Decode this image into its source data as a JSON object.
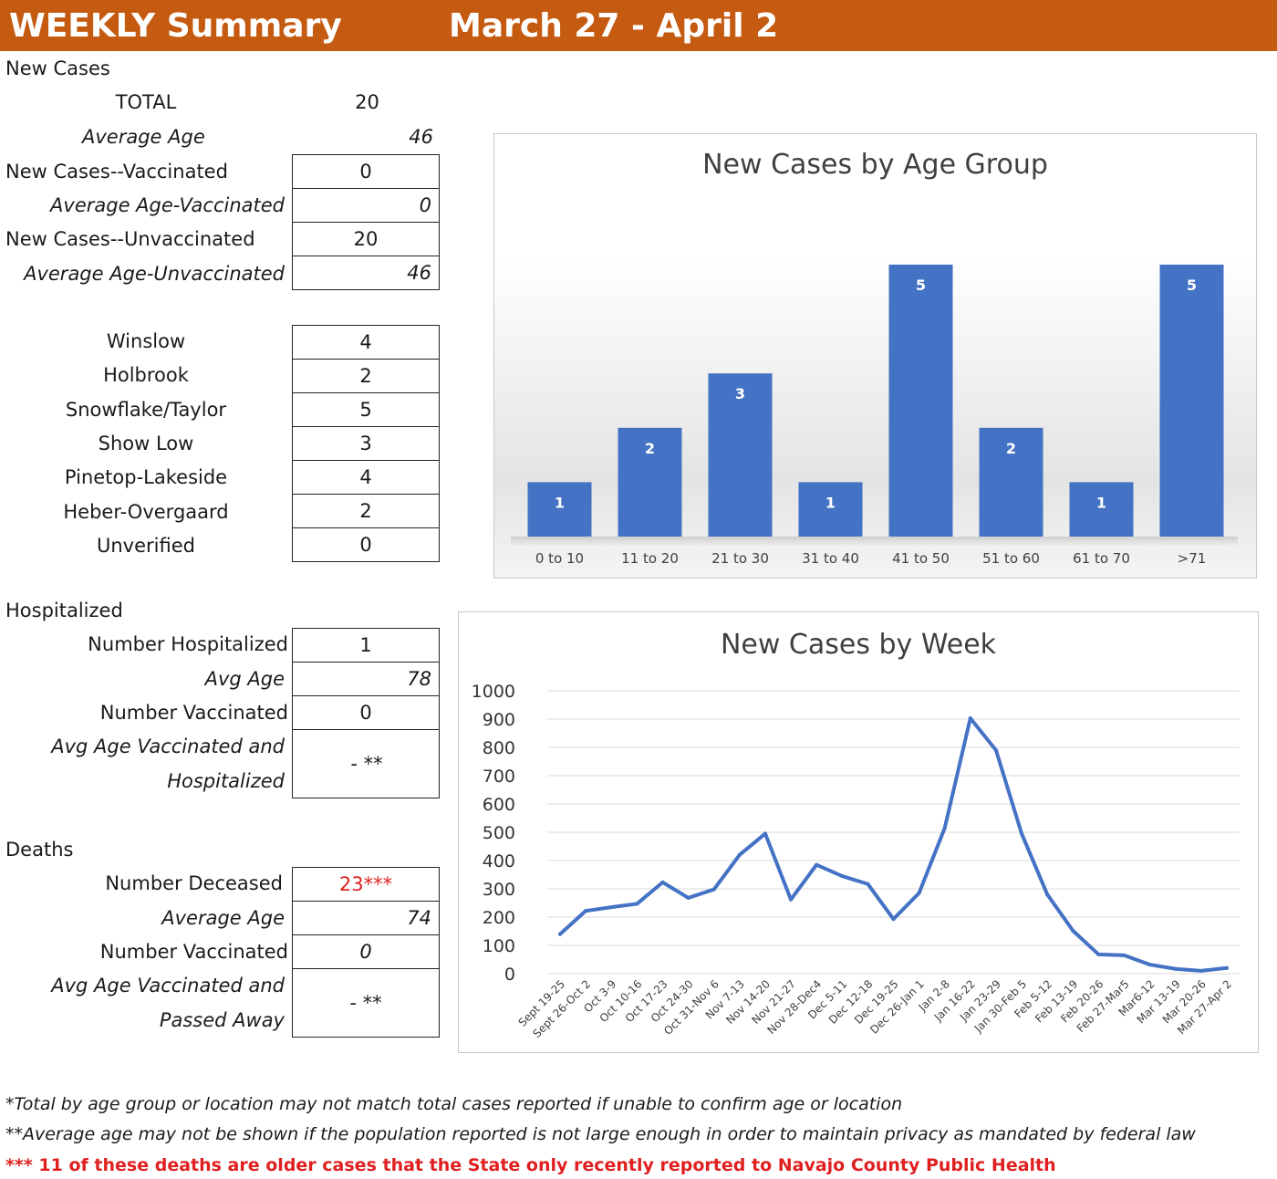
{
  "header": {
    "left": "WEEKLY Summary",
    "right": "March 27 - April 2"
  },
  "new_cases": {
    "section_title": "New Cases",
    "total_label": "TOTAL",
    "total_value": "20",
    "avg_age_label": "Average Age",
    "avg_age_value": "46",
    "rows": [
      {
        "label": "New Cases--Vaccinated",
        "value": "0"
      },
      {
        "label": "Average Age-Vaccinated",
        "value": "0"
      },
      {
        "label": "New Cases--Unvaccinated",
        "value": "20"
      },
      {
        "label": "Average Age-Unvaccinated",
        "value": "46"
      }
    ]
  },
  "locations": [
    {
      "label": "Winslow",
      "value": "4"
    },
    {
      "label": "Holbrook",
      "value": "2"
    },
    {
      "label": "Snowflake/Taylor",
      "value": "5"
    },
    {
      "label": "Show Low",
      "value": "3"
    },
    {
      "label": "Pinetop-Lakeside",
      "value": "4"
    },
    {
      "label": "Heber-Overgaard",
      "value": "2"
    },
    {
      "label": "Unverified",
      "value": "0"
    }
  ],
  "hospitalized": {
    "section_title": "Hospitalized",
    "rows": [
      {
        "label": "Number Hospitalized",
        "value": "1"
      },
      {
        "label": "Avg Age",
        "value": "78"
      },
      {
        "label": "Number Vaccinated",
        "value": "0"
      },
      {
        "label": "Avg Age Vaccinated and",
        "label2": "Hospitalized",
        "value": "- **"
      }
    ]
  },
  "deaths": {
    "section_title": "Deaths",
    "rows": [
      {
        "label": "Number Deceased",
        "value": "23***"
      },
      {
        "label": "Average Age",
        "value": "74"
      },
      {
        "label": "Number Vaccinated",
        "value": "0"
      },
      {
        "label": "Avg Age Vaccinated and",
        "label2": "Passed Away",
        "value": "- **"
      }
    ]
  },
  "footnotes": [
    "*Total by age group or location may not match total cases reported if unable to confirm age or location",
    "**Average age may not be shown if the population reported is not large enough in order to maintain privacy as mandated by federal law",
    "*** 11 of these deaths are older cases that the State only recently reported to Navajo County Public Health"
  ],
  "colors": {
    "header": "#c55a11",
    "bar": "#4472c4",
    "line": "#4472c4",
    "alert": "#e02020"
  },
  "chart_data": [
    {
      "type": "bar",
      "title": "New Cases by Age Group",
      "categories": [
        "0 to 10",
        "11 to 20",
        "21 to 30",
        "31 to 40",
        "41 to 50",
        "51 to 60",
        "61 to 70",
        ">71"
      ],
      "values": [
        1,
        2,
        3,
        1,
        5,
        2,
        1,
        5
      ],
      "ylim": [
        0,
        5
      ],
      "grid": false,
      "legend": "none"
    },
    {
      "type": "line",
      "title": "New Cases by Week",
      "x": [
        "Sept 19-25",
        "Sept 26-Oct 2",
        "Oct 3-9",
        "Oct 10-16",
        "Oct 17-23",
        "Oct 24-30",
        "Oct 31-Nov 6",
        "Nov 7-13",
        "Nov 14-20",
        "Nov 21-27",
        "Nov 28-Dec4",
        "Dec 5-11",
        "Dec 12-18",
        "Dec 19-25",
        "Dec 26-Jan 1",
        "Jan 2-8",
        "Jan 16-22",
        "Jan 23-29",
        "Jan 30-Feb 5",
        "Feb 5-12",
        "Feb 13-19",
        "Feb 20-26",
        "Feb 27-Mar5",
        "Mar6-12",
        "Mar 13-19",
        "Mar 20-26",
        "Mar 27-Apr 2"
      ],
      "values": [
        140,
        222,
        235,
        247,
        323,
        268,
        298,
        420,
        495,
        262,
        385,
        345,
        317,
        193,
        285,
        515,
        903,
        790,
        495,
        280,
        152,
        68,
        65,
        32,
        17,
        10,
        20
      ],
      "yticks": [
        "0",
        "100",
        "200",
        "300",
        "400",
        "500",
        "600",
        "700",
        "800",
        "900",
        "1000"
      ],
      "ylim": [
        0,
        1000
      ],
      "grid": true,
      "legend": "none"
    }
  ]
}
